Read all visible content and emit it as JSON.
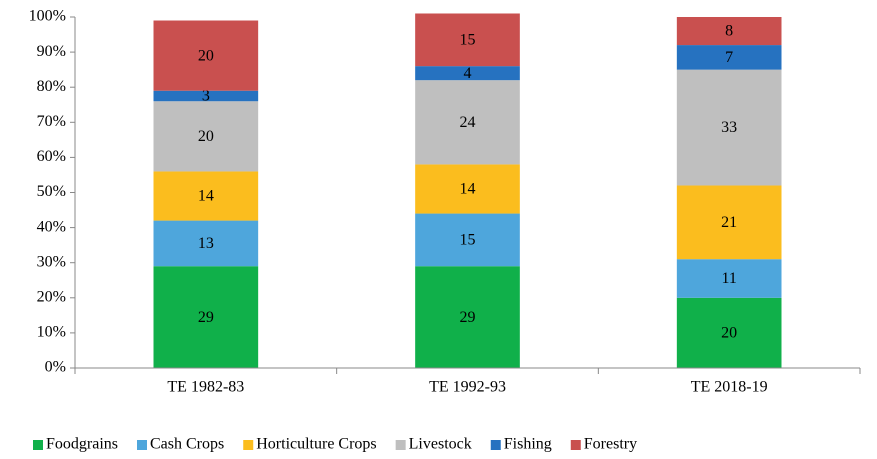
{
  "chart_data": {
    "type": "bar",
    "stacked": true,
    "categories": [
      "TE 1982-83",
      "TE 1992-93",
      "TE 2018-19"
    ],
    "series": [
      {
        "name": "Foodgrains",
        "color": "#10b04a",
        "values": [
          29,
          29,
          20
        ]
      },
      {
        "name": "Cash Crops",
        "color": "#4ea6dc",
        "values": [
          13,
          15,
          11
        ]
      },
      {
        "name": "Horticulture Crops",
        "color": "#fbbd1e",
        "values": [
          14,
          14,
          21
        ]
      },
      {
        "name": "Livestock",
        "color": "#bfbfbf",
        "values": [
          20,
          24,
          33
        ]
      },
      {
        "name": "Fishing",
        "color": "#2672c0",
        "values": [
          3,
          4,
          7
        ]
      },
      {
        "name": "Forestry",
        "color": "#c9504f",
        "values": [
          20,
          15,
          8
        ]
      }
    ],
    "ylim": [
      0,
      100
    ],
    "yticks": [
      {
        "value": 0,
        "label": "0%"
      },
      {
        "value": 10,
        "label": "10%"
      },
      {
        "value": 20,
        "label": "20%"
      },
      {
        "value": 30,
        "label": "30%"
      },
      {
        "value": 40,
        "label": "40%"
      },
      {
        "value": 50,
        "label": "50%"
      },
      {
        "value": 60,
        "label": "60%"
      },
      {
        "value": 70,
        "label": "70%"
      },
      {
        "value": 80,
        "label": "80%"
      },
      {
        "value": 90,
        "label": "90%"
      },
      {
        "value": 100,
        "label": "100%"
      }
    ],
    "legend": "bottom"
  }
}
